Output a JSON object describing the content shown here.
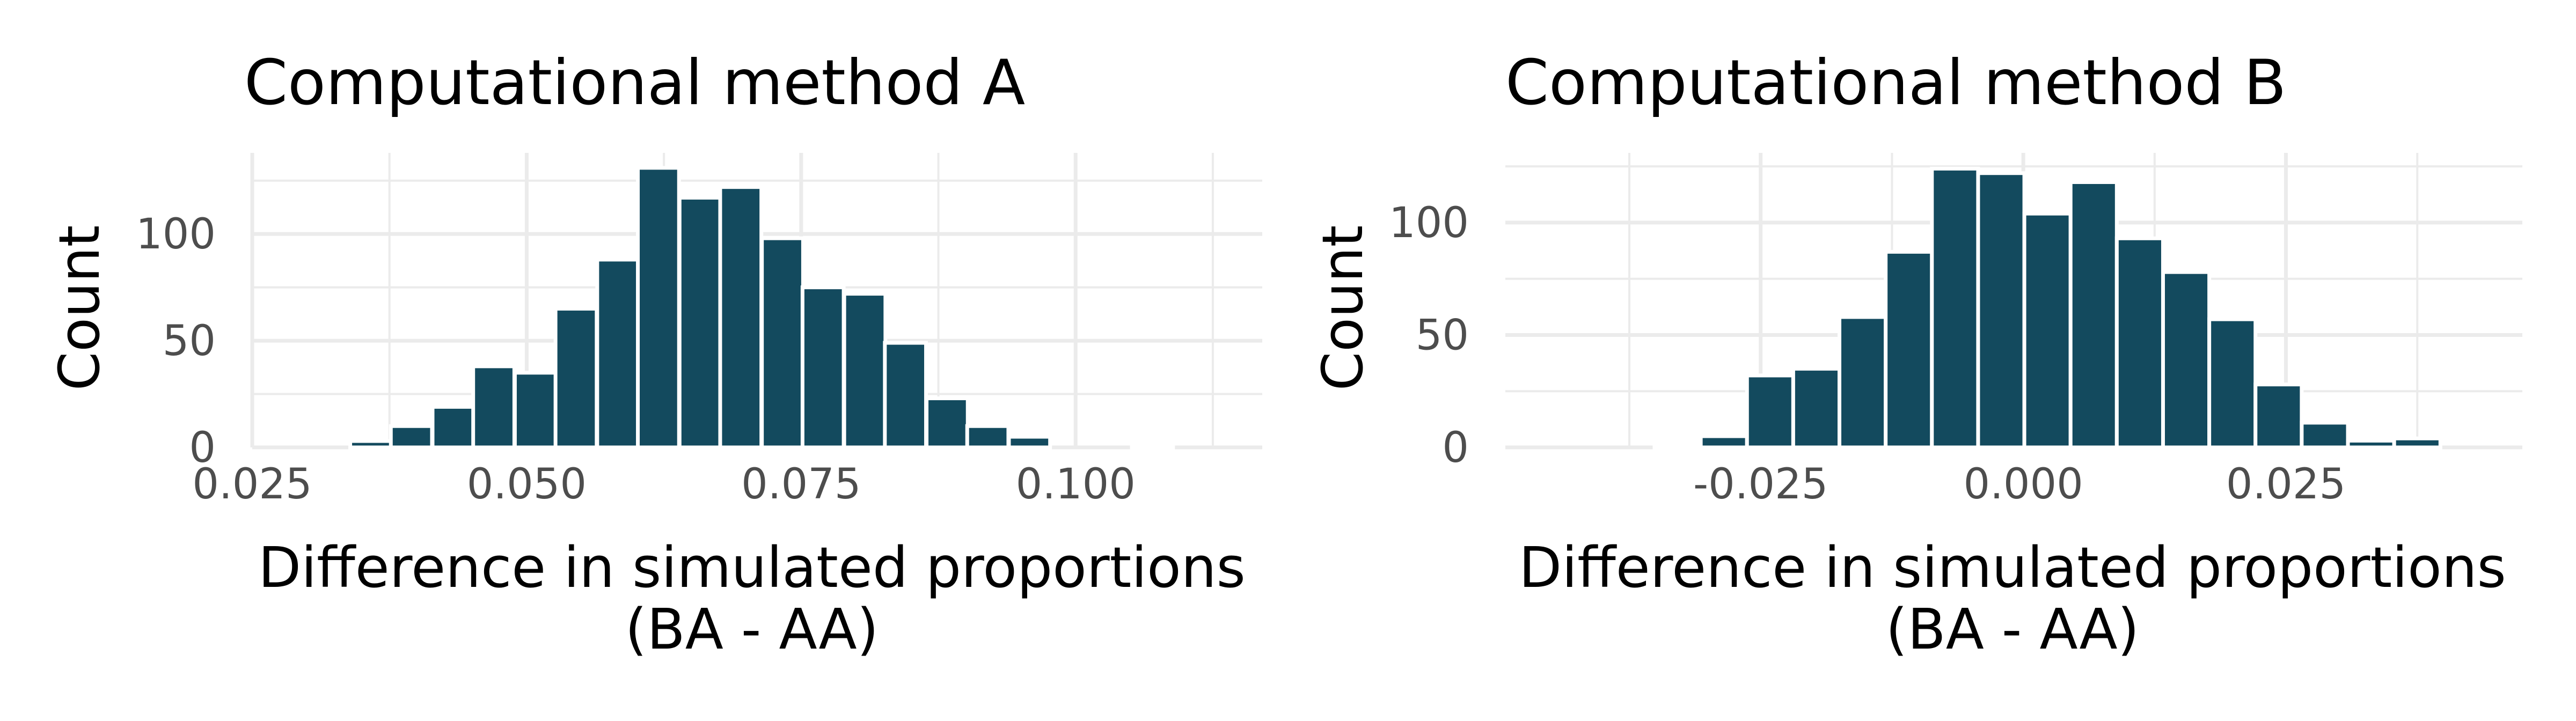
{
  "colors": {
    "bar": "#134a5e",
    "bar_outline": "#ffffff",
    "grid": "#ebebeb",
    "tick_text": "#4d4d4d",
    "text": "#000000"
  },
  "chart_data": [
    {
      "type": "bar",
      "title": "Computational method A",
      "xlabel": "Difference in simulated proportions\n(BA - AA)",
      "xlabel_lines": [
        "Difference in simulated proportions",
        "(BA - AA)"
      ],
      "ylabel": "Count",
      "xlim": [
        0.025,
        0.117
      ],
      "ylim": [
        0,
        138
      ],
      "x_ticks": [
        0.025,
        0.05,
        0.075,
        0.1
      ],
      "x_tick_labels": [
        "0.025",
        "0.050",
        "0.075",
        "0.100"
      ],
      "y_ticks": [
        0,
        50,
        100
      ],
      "y_tick_labels": [
        "0",
        "50",
        "100"
      ],
      "grid": true,
      "bin_width": 0.00375,
      "x": [
        0.0283,
        0.032,
        0.0358,
        0.0395,
        0.0433,
        0.047,
        0.0508,
        0.0545,
        0.0583,
        0.062,
        0.0658,
        0.0695,
        0.0733,
        0.077,
        0.0808,
        0.0845,
        0.0883,
        0.092,
        0.0958,
        0.0995,
        0.1033,
        0.107,
        0.1108,
        0.1145
      ],
      "values": [
        0,
        0,
        3,
        10,
        19,
        38,
        35,
        65,
        88,
        131,
        117,
        122,
        98,
        75,
        72,
        49,
        23,
        10,
        5,
        0,
        0,
        1,
        0,
        0
      ]
    },
    {
      "type": "bar",
      "title": "Computational method B",
      "xlabel": "Difference in simulated proportions\n(BA - AA)",
      "xlabel_lines": [
        "Difference in simulated proportions",
        "(BA - AA)"
      ],
      "ylabel": "Count",
      "xlim": [
        -0.0493,
        0.0475
      ],
      "ylim": [
        0,
        131
      ],
      "x_ticks": [
        -0.025,
        0.0,
        0.025
      ],
      "x_tick_labels": [
        "-0.025",
        "0.000",
        "0.025"
      ],
      "y_ticks": [
        0,
        50,
        100
      ],
      "y_tick_labels": [
        "0",
        "50",
        "100"
      ],
      "grid": true,
      "bin_width": 0.0044,
      "x": [
        -0.0461,
        -0.0417,
        -0.0373,
        -0.0329,
        -0.0285,
        -0.0241,
        -0.0197,
        -0.0153,
        -0.0109,
        -0.0065,
        -0.0021,
        0.0023,
        0.0067,
        0.0111,
        0.0155,
        0.0199,
        0.0243,
        0.0287,
        0.0331,
        0.0375,
        0.0419,
        0.0463
      ],
      "values": [
        0,
        0,
        0,
        1,
        5,
        32,
        35,
        58,
        87,
        124,
        122,
        104,
        118,
        93,
        78,
        57,
        28,
        11,
        3,
        4,
        0,
        0
      ]
    }
  ]
}
